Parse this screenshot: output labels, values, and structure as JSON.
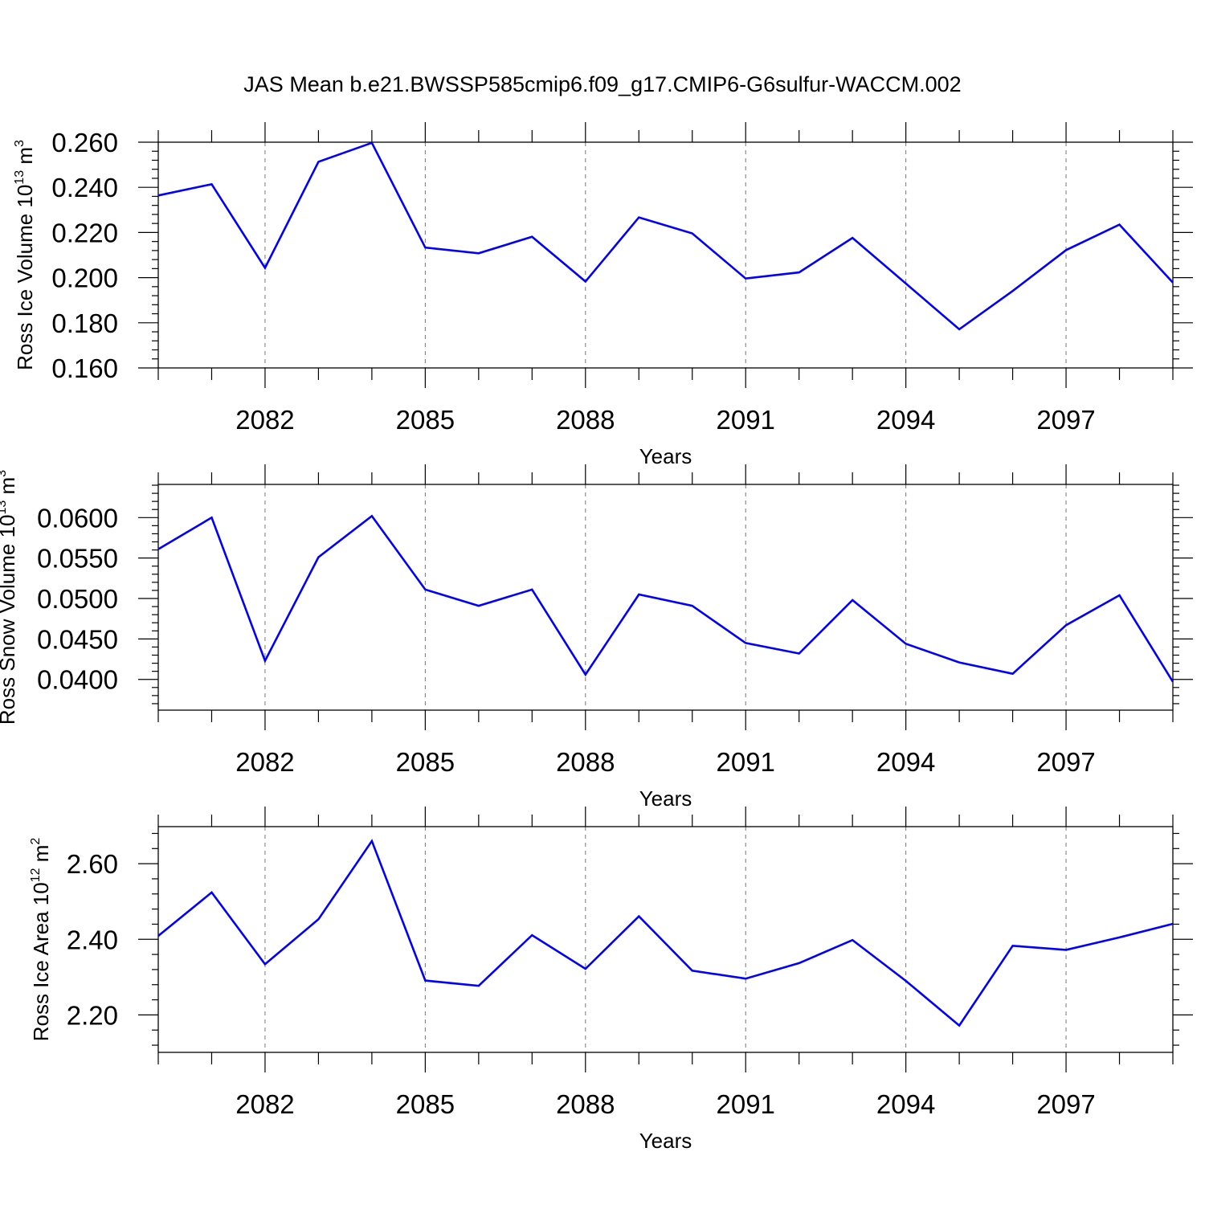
{
  "title": "JAS Mean b.e21.BWSSP585cmip6.f09_g17.CMIP6-G6sulfur-WACCM.002",
  "colors": {
    "line": "#0000ff",
    "axis": "#000000",
    "grid": "#777777"
  },
  "chart_data": [
    {
      "type": "line",
      "ylabel": {
        "text": "Ross Ice Volume 10",
        "sup": "13",
        "unit": " m",
        "unit_sup": "3"
      },
      "xlabel": "Years",
      "xlim": [
        2080,
        2099
      ],
      "ylim": [
        0.16,
        0.26
      ],
      "xticks": [
        2082,
        2085,
        2088,
        2091,
        2094,
        2097
      ],
      "yticks": [
        0.16,
        0.18,
        0.2,
        0.22,
        0.24,
        0.26
      ],
      "ytick_labels": [
        "0.160",
        "0.180",
        "0.200",
        "0.220",
        "0.240",
        "0.260"
      ],
      "grid": "vertical dashed at major x ticks",
      "series": [
        {
          "x": [
            2080,
            2081,
            2082,
            2083,
            2084,
            2085,
            2086,
            2087,
            2088,
            2089,
            2090,
            2091,
            2092,
            2093,
            2094,
            2095,
            2096,
            2097,
            2098,
            2099
          ],
          "values": [
            0.2364,
            0.2414,
            0.2043,
            0.2513,
            0.2597,
            0.2133,
            0.2108,
            0.2181,
            0.1983,
            0.2267,
            0.2196,
            0.1996,
            0.2023,
            0.2176,
            0.1974,
            0.1771,
            0.1941,
            0.2122,
            0.2235,
            0.1978
          ]
        }
      ]
    },
    {
      "type": "line",
      "ylabel": {
        "text": "Ross Snow Volume 10",
        "sup": "13",
        "unit": " m",
        "unit_sup": "3"
      },
      "xlabel": "Years",
      "xlim": [
        2080,
        2099
      ],
      "ylim": [
        0.0362,
        0.0641
      ],
      "xticks": [
        2082,
        2085,
        2088,
        2091,
        2094,
        2097
      ],
      "yticks": [
        0.04,
        0.045,
        0.05,
        0.055,
        0.06
      ],
      "ytick_labels": [
        "0.0400",
        "0.0450",
        "0.0500",
        "0.0550",
        "0.0600"
      ],
      "grid": "vertical dashed at major x ticks",
      "series": [
        {
          "x": [
            2080,
            2081,
            2082,
            2083,
            2084,
            2085,
            2086,
            2087,
            2088,
            2089,
            2090,
            2091,
            2092,
            2093,
            2094,
            2095,
            2096,
            2097,
            2098,
            2099
          ],
          "values": [
            0.0561,
            0.06,
            0.0423,
            0.0551,
            0.0602,
            0.0511,
            0.0491,
            0.0511,
            0.0406,
            0.0505,
            0.0491,
            0.0445,
            0.0432,
            0.0498,
            0.0444,
            0.0421,
            0.0407,
            0.0467,
            0.0504,
            0.0397
          ]
        }
      ]
    },
    {
      "type": "line",
      "ylabel": {
        "text": "Ross Ice Area 10",
        "sup": "12",
        "unit": " m",
        "unit_sup": "2"
      },
      "xlabel": "Years",
      "xlim": [
        2080,
        2099
      ],
      "ylim": [
        2.101,
        2.698
      ],
      "xticks": [
        2082,
        2085,
        2088,
        2091,
        2094,
        2097
      ],
      "yticks": [
        2.2,
        2.4,
        2.6
      ],
      "ytick_labels": [
        "2.20",
        "2.40",
        "2.60"
      ],
      "grid": "vertical dashed at major x ticks",
      "series": [
        {
          "x": [
            2080,
            2081,
            2082,
            2083,
            2084,
            2085,
            2086,
            2087,
            2088,
            2089,
            2090,
            2091,
            2092,
            2093,
            2094,
            2095,
            2096,
            2097,
            2098,
            2099
          ],
          "values": [
            2.409,
            2.524,
            2.334,
            2.453,
            2.66,
            2.291,
            2.277,
            2.411,
            2.322,
            2.461,
            2.317,
            2.296,
            2.337,
            2.398,
            2.29,
            2.172,
            2.383,
            2.372,
            2.405,
            2.441
          ]
        }
      ]
    }
  ]
}
